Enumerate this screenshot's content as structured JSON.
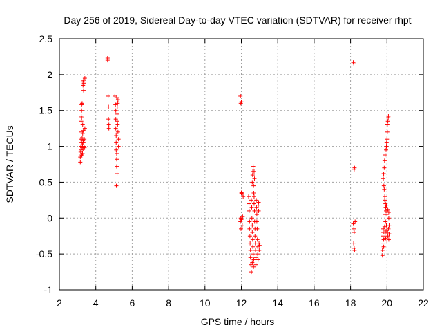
{
  "chart_data": {
    "type": "scatter",
    "title": "Day 256 of 2019, Sidereal Day-to-day VTEC variation (SDTVAR) for receiver rhpt",
    "xlabel": "GPS time / hours",
    "ylabel": "SDTVAR / TECUs",
    "xlim": [
      2,
      22
    ],
    "ylim": [
      -1,
      2.5
    ],
    "xticks": [
      "2",
      "4",
      "6",
      "8",
      "10",
      "12",
      "14",
      "16",
      "18",
      "20",
      "22"
    ],
    "yticks": [
      "-1",
      "-0.5",
      "0",
      "0.5",
      "1",
      "1.5",
      "2",
      "2.5"
    ],
    "grid": true,
    "marker": "+",
    "color": "#ff0000",
    "series": [
      {
        "name": "SDTVAR",
        "points": [
          [
            3.15,
            0.78
          ],
          [
            3.15,
            0.85
          ],
          [
            3.17,
            0.92
          ],
          [
            3.18,
            1.0
          ],
          [
            3.18,
            1.1
          ],
          [
            3.2,
            1.2
          ],
          [
            3.2,
            1.35
          ],
          [
            3.2,
            1.42
          ],
          [
            3.22,
            1.5
          ],
          [
            3.22,
            1.58
          ],
          [
            3.2,
            0.95
          ],
          [
            3.22,
            1.05
          ],
          [
            3.23,
            0.88
          ],
          [
            3.25,
            0.98
          ],
          [
            3.25,
            1.12
          ],
          [
            3.27,
            1.02
          ],
          [
            3.27,
            0.9
          ],
          [
            3.28,
            1.18
          ],
          [
            3.28,
            1.3
          ],
          [
            3.3,
            1.08
          ],
          [
            3.3,
            0.96
          ],
          [
            3.3,
            1.85
          ],
          [
            3.3,
            1.9
          ],
          [
            3.32,
            1.05
          ],
          [
            3.32,
            1.22
          ],
          [
            3.33,
            1.92
          ],
          [
            3.33,
            1.78
          ],
          [
            3.35,
            1.88
          ],
          [
            3.35,
            1.0
          ],
          [
            3.37,
            1.1
          ],
          [
            3.38,
            0.98
          ],
          [
            3.4,
            1.25
          ],
          [
            3.4,
            1.95
          ],
          [
            3.22,
            1.4
          ],
          [
            3.25,
            1.6
          ],
          [
            4.65,
            2.2
          ],
          [
            4.65,
            2.23
          ],
          [
            4.68,
            1.7
          ],
          [
            4.7,
            1.55
          ],
          [
            4.7,
            1.38
          ],
          [
            4.72,
            1.3
          ],
          [
            4.72,
            1.25
          ],
          [
            5.05,
            1.7
          ],
          [
            5.08,
            1.58
          ],
          [
            5.1,
            1.5
          ],
          [
            5.1,
            1.38
          ],
          [
            5.1,
            1.25
          ],
          [
            5.12,
            1.15
          ],
          [
            5.12,
            1.05
          ],
          [
            5.12,
            0.95
          ],
          [
            5.15,
            0.9
          ],
          [
            5.15,
            0.82
          ],
          [
            5.15,
            0.72
          ],
          [
            5.17,
            0.62
          ],
          [
            5.13,
            0.45
          ],
          [
            5.17,
            1.45
          ],
          [
            5.18,
            1.35
          ],
          [
            5.2,
            1.6
          ],
          [
            5.2,
            1.3
          ],
          [
            5.22,
            1.65
          ],
          [
            5.22,
            1.2
          ],
          [
            5.25,
            1.1
          ],
          [
            5.25,
            1.0
          ],
          [
            5.15,
            1.68
          ],
          [
            5.18,
            1.55
          ],
          [
            11.95,
            1.7
          ],
          [
            11.97,
            1.6
          ],
          [
            12.0,
            1.62
          ],
          [
            11.95,
            -0.05
          ],
          [
            11.97,
            0.0
          ],
          [
            12.0,
            -0.02
          ],
          [
            12.0,
            0.35
          ],
          [
            12.02,
            0.36
          ],
          [
            12.05,
            0.34
          ],
          [
            11.98,
            -0.15
          ],
          [
            12.05,
            -0.1
          ],
          [
            12.07,
            0.02
          ],
          [
            12.1,
            0.3
          ],
          [
            12.4,
            0.3
          ],
          [
            12.42,
            0.2
          ],
          [
            12.43,
            0.1
          ],
          [
            12.45,
            -0.05
          ],
          [
            12.45,
            -0.15
          ],
          [
            12.47,
            -0.25
          ],
          [
            12.48,
            -0.35
          ],
          [
            12.5,
            -0.45
          ],
          [
            12.5,
            -0.55
          ],
          [
            12.52,
            -0.65
          ],
          [
            12.55,
            -0.75
          ],
          [
            12.55,
            0.25
          ],
          [
            12.57,
            0.15
          ],
          [
            12.58,
            0.0
          ],
          [
            12.6,
            -0.1
          ],
          [
            12.6,
            -0.2
          ],
          [
            12.62,
            -0.3
          ],
          [
            12.63,
            -0.4
          ],
          [
            12.65,
            -0.5
          ],
          [
            12.65,
            -0.6
          ],
          [
            12.67,
            -0.68
          ],
          [
            12.6,
            0.5
          ],
          [
            12.62,
            0.6
          ],
          [
            12.63,
            0.65
          ],
          [
            12.65,
            0.72
          ],
          [
            12.67,
            0.45
          ],
          [
            12.68,
            0.35
          ],
          [
            12.7,
            0.3
          ],
          [
            12.7,
            0.2
          ],
          [
            12.72,
            0.1
          ],
          [
            12.73,
            -0.05
          ],
          [
            12.75,
            -0.15
          ],
          [
            12.75,
            -0.25
          ],
          [
            12.77,
            -0.35
          ],
          [
            12.78,
            -0.45
          ],
          [
            12.8,
            -0.55
          ],
          [
            12.8,
            -0.65
          ],
          [
            12.82,
            0.25
          ],
          [
            12.83,
            0.15
          ],
          [
            12.85,
            0.05
          ],
          [
            12.85,
            -0.05
          ],
          [
            12.87,
            -0.15
          ],
          [
            12.88,
            -0.3
          ],
          [
            12.9,
            -0.4
          ],
          [
            12.9,
            -0.5
          ],
          [
            12.92,
            -0.58
          ],
          [
            12.93,
            0.18
          ],
          [
            12.95,
            0.1
          ],
          [
            12.95,
            0.22
          ],
          [
            12.97,
            -0.35
          ],
          [
            12.98,
            -0.45
          ],
          [
            13.0,
            -0.38
          ],
          [
            12.72,
            0.55
          ],
          [
            12.7,
            0.65
          ],
          [
            12.68,
            -0.58
          ],
          [
            12.6,
            -0.62
          ],
          [
            18.15,
            2.17
          ],
          [
            18.18,
            2.15
          ],
          [
            18.2,
            0.68
          ],
          [
            18.22,
            0.7
          ],
          [
            18.15,
            -0.08
          ],
          [
            18.18,
            -0.15
          ],
          [
            18.2,
            -0.2
          ],
          [
            18.17,
            -0.35
          ],
          [
            18.2,
            -0.42
          ],
          [
            18.22,
            -0.45
          ],
          [
            18.25,
            -0.05
          ],
          [
            19.75,
            -0.52
          ],
          [
            19.75,
            -0.45
          ],
          [
            19.78,
            -0.35
          ],
          [
            19.78,
            -0.25
          ],
          [
            19.8,
            -0.15
          ],
          [
            19.8,
            -0.2
          ],
          [
            19.82,
            -0.3
          ],
          [
            19.82,
            -0.4
          ],
          [
            19.8,
            0.55
          ],
          [
            19.82,
            0.62
          ],
          [
            19.83,
            0.45
          ],
          [
            19.85,
            0.4
          ],
          [
            19.85,
            0.7
          ],
          [
            19.87,
            0.8
          ],
          [
            19.88,
            0.3
          ],
          [
            19.88,
            0.25
          ],
          [
            19.9,
            0.88
          ],
          [
            19.92,
            0.2
          ],
          [
            19.92,
            -0.05
          ],
          [
            19.93,
            0.15
          ],
          [
            19.95,
            0.95
          ],
          [
            19.95,
            0.1
          ],
          [
            19.97,
            -0.1
          ],
          [
            19.97,
            1.0
          ],
          [
            19.98,
            1.05
          ],
          [
            20.0,
            1.1
          ],
          [
            20.0,
            0.05
          ],
          [
            20.02,
            1.2
          ],
          [
            20.02,
            1.3
          ],
          [
            20.05,
            1.35
          ],
          [
            20.05,
            -0.25
          ],
          [
            20.07,
            1.4
          ],
          [
            20.08,
            1.42
          ],
          [
            20.1,
            -0.3
          ],
          [
            20.1,
            0.0
          ],
          [
            20.12,
            -0.1
          ],
          [
            19.9,
            -0.22
          ],
          [
            19.93,
            -0.28
          ],
          [
            19.95,
            -0.18
          ],
          [
            20.0,
            -0.32
          ],
          [
            20.03,
            -0.2
          ],
          [
            20.08,
            -0.15
          ],
          [
            19.87,
            -0.12
          ],
          [
            19.9,
            0.05
          ],
          [
            19.97,
            0.18
          ],
          [
            20.05,
            0.12
          ],
          [
            20.1,
            0.08
          ],
          [
            20.12,
            -0.22
          ]
        ]
      }
    ]
  }
}
